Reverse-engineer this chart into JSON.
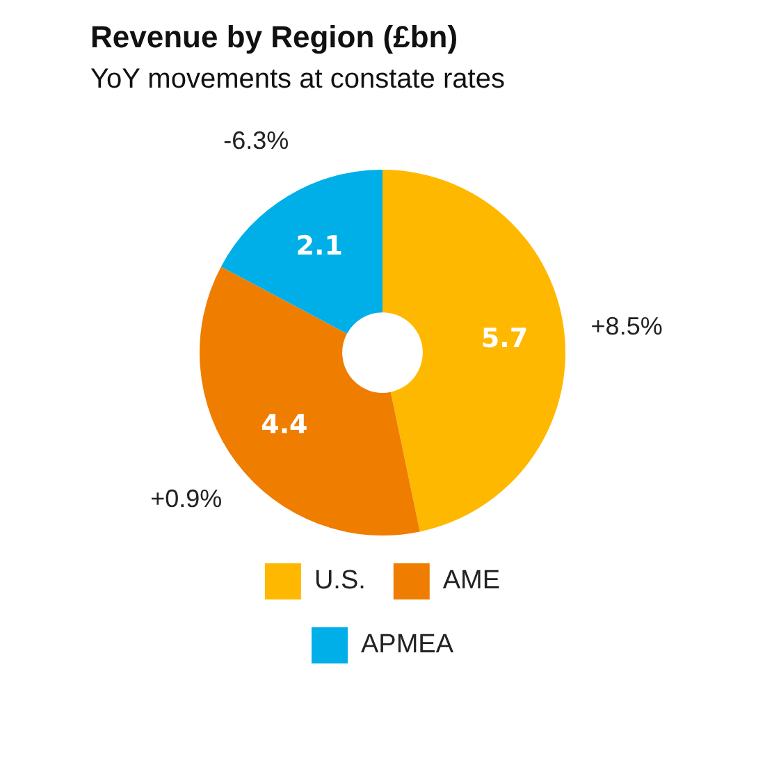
{
  "chart_data": {
    "type": "donut",
    "title": "Revenue by Region (£bn)",
    "subtitle": "YoY movements at constate rates",
    "categories": [
      "U.S.",
      "AME",
      "APMEA"
    ],
    "values": [
      5.7,
      4.4,
      2.1
    ],
    "colors": [
      "#ffb800",
      "#ef7d00",
      "#00aee8"
    ],
    "data_labels": true,
    "legend": "bottom",
    "annotations": [
      {
        "text": "+8.5%",
        "x": "U.S."
      },
      {
        "text": "+0.9%",
        "x": "AME"
      },
      {
        "text": "-6.3%",
        "x": "APMEA"
      }
    ]
  }
}
